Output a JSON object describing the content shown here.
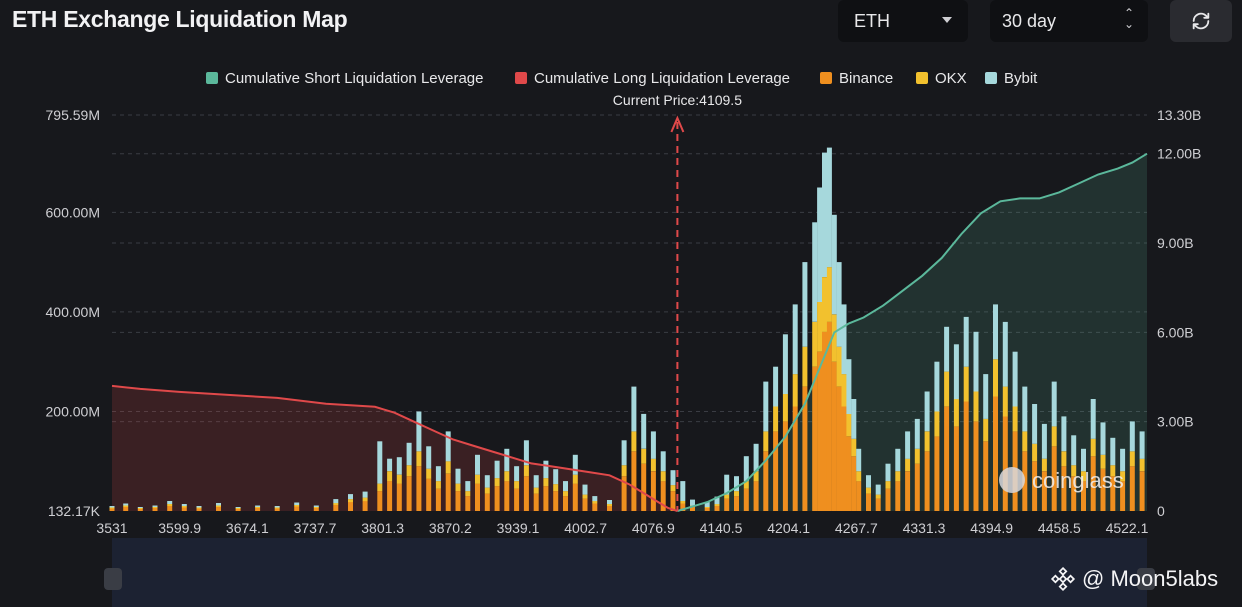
{
  "header": {
    "title": "ETH Exchange Liquidation Map",
    "symbol_select": "ETH",
    "range_select": "30 day"
  },
  "watermark": {
    "text": "@ Moon5labs",
    "chart_brand": "coinglass"
  },
  "colors": {
    "short_cum": "#5bb89b",
    "long_cum": "#e0494a",
    "binance": "#ef8f1f",
    "okx": "#f2c12e",
    "bybit": "#a6d8dc"
  },
  "chart_data": {
    "type": "bar",
    "current_price_label": "Current Price:4109.5",
    "current_price": 4109.5,
    "legend": [
      "Cumulative Short Liquidation Leverage",
      "Cumulative Long Liquidation Leverage",
      "Binance",
      "OKX",
      "Bybit"
    ],
    "legend_position": "top-center",
    "x_ticks": [
      "3531",
      "3599.9",
      "3674.1",
      "3737.7",
      "3801.3",
      "3870.2",
      "3939.1",
      "4002.7",
      "4076.9",
      "4140.5",
      "4204.1",
      "4267.7",
      "4331.3",
      "4394.9",
      "4458.5",
      "4522.1"
    ],
    "x_range": [
      3531,
      4590
    ],
    "y_left_ticks": [
      "795.59M",
      "600.00M",
      "400.00M",
      "200.00M",
      "132.17K"
    ],
    "y_left_range": [
      0,
      795.59
    ],
    "y_left_unit": "M",
    "y_right_ticks": [
      "13.30B",
      "12.00B",
      "9.00B",
      "6.00B",
      "3.00B",
      "0"
    ],
    "y_right_range": [
      0,
      13.3
    ],
    "y_right_unit": "B",
    "grid": "horizontal-dashed",
    "series": [
      {
        "name": "Binance",
        "x": [
          3531,
          3545,
          3560,
          3575,
          3590,
          3605,
          3620,
          3640,
          3660,
          3680,
          3700,
          3720,
          3740,
          3760,
          3775,
          3790,
          3805,
          3815,
          3825,
          3835,
          3845,
          3855,
          3865,
          3875,
          3885,
          3895,
          3905,
          3915,
          3925,
          3935,
          3945,
          3955,
          3965,
          3975,
          3985,
          3995,
          4005,
          4015,
          4025,
          4040,
          4055,
          4065,
          4075,
          4085,
          4095,
          4105,
          4115,
          4125,
          4140,
          4150,
          4160,
          4170,
          4180,
          4190,
          4200,
          4210,
          4220,
          4230,
          4240,
          4250,
          4255,
          4260,
          4265,
          4270,
          4275,
          4280,
          4285,
          4290,
          4295,
          4305,
          4315,
          4325,
          4335,
          4345,
          4355,
          4365,
          4375,
          4385,
          4395,
          4405,
          4415,
          4425,
          4435,
          4445,
          4455,
          4465,
          4475,
          4485,
          4495,
          4505,
          4515,
          4525,
          4535,
          4545,
          4555,
          4565,
          4575,
          4585
        ],
        "values": [
          5,
          8,
          4,
          6,
          10,
          7,
          5,
          8,
          4,
          6,
          5,
          9,
          6,
          12,
          18,
          20,
          40,
          60,
          55,
          70,
          90,
          65,
          45,
          75,
          40,
          30,
          55,
          35,
          50,
          60,
          45,
          70,
          35,
          50,
          40,
          30,
          55,
          25,
          15,
          10,
          70,
          120,
          95,
          80,
          60,
          40,
          15,
          8,
          6,
          10,
          25,
          30,
          45,
          60,
          120,
          160,
          180,
          210,
          250,
          290,
          320,
          360,
          380,
          300,
          250,
          210,
          150,
          110,
          60,
          35,
          25,
          45,
          60,
          80,
          95,
          120,
          150,
          210,
          170,
          220,
          180,
          140,
          230,
          190,
          160,
          120,
          100,
          80,
          130,
          90,
          70,
          60,
          110,
          85,
          70,
          60,
          90,
          80
        ]
      },
      {
        "name": "OKX",
        "x": [
          3531,
          3545,
          3560,
          3575,
          3590,
          3605,
          3620,
          3640,
          3660,
          3680,
          3700,
          3720,
          3740,
          3760,
          3775,
          3790,
          3805,
          3815,
          3825,
          3835,
          3845,
          3855,
          3865,
          3875,
          3885,
          3895,
          3905,
          3915,
          3925,
          3935,
          3945,
          3955,
          3965,
          3975,
          3985,
          3995,
          4005,
          4015,
          4025,
          4040,
          4055,
          4065,
          4075,
          4085,
          4095,
          4105,
          4115,
          4125,
          4140,
          4150,
          4160,
          4170,
          4180,
          4190,
          4200,
          4210,
          4220,
          4230,
          4240,
          4250,
          4255,
          4260,
          4265,
          4270,
          4275,
          4280,
          4285,
          4290,
          4295,
          4305,
          4315,
          4325,
          4335,
          4345,
          4355,
          4365,
          4375,
          4385,
          4395,
          4405,
          4415,
          4425,
          4435,
          4445,
          4455,
          4465,
          4475,
          4485,
          4495,
          4505,
          4515,
          4525,
          4535,
          4545,
          4555,
          4565,
          4575,
          4585
        ],
        "values": [
          2,
          3,
          2,
          2,
          4,
          3,
          2,
          3,
          2,
          2,
          2,
          3,
          2,
          4,
          6,
          7,
          15,
          20,
          18,
          22,
          30,
          20,
          15,
          25,
          15,
          10,
          18,
          12,
          16,
          20,
          15,
          22,
          12,
          16,
          14,
          10,
          18,
          8,
          5,
          4,
          22,
          40,
          30,
          25,
          20,
          12,
          5,
          3,
          2,
          4,
          8,
          10,
          15,
          20,
          40,
          50,
          55,
          65,
          80,
          90,
          100,
          110,
          110,
          95,
          80,
          65,
          45,
          35,
          20,
          12,
          8,
          15,
          20,
          25,
          30,
          40,
          50,
          70,
          55,
          70,
          60,
          45,
          75,
          60,
          50,
          40,
          35,
          25,
          40,
          30,
          22,
          20,
          35,
          28,
          22,
          20,
          30,
          25
        ]
      },
      {
        "name": "Bybit",
        "x": [
          3531,
          3545,
          3560,
          3575,
          3590,
          3605,
          3620,
          3640,
          3660,
          3680,
          3700,
          3720,
          3740,
          3760,
          3775,
          3790,
          3805,
          3815,
          3825,
          3835,
          3845,
          3855,
          3865,
          3875,
          3885,
          3895,
          3905,
          3915,
          3925,
          3935,
          3945,
          3955,
          3965,
          3975,
          3985,
          3995,
          4005,
          4015,
          4025,
          4040,
          4055,
          4065,
          4075,
          4085,
          4095,
          4105,
          4115,
          4125,
          4140,
          4150,
          4160,
          4170,
          4180,
          4190,
          4200,
          4210,
          4220,
          4230,
          4240,
          4250,
          4255,
          4260,
          4265,
          4270,
          4275,
          4280,
          4285,
          4290,
          4295,
          4305,
          4315,
          4325,
          4335,
          4345,
          4355,
          4365,
          4375,
          4385,
          4395,
          4405,
          4415,
          4425,
          4435,
          4445,
          4455,
          4465,
          4475,
          4485,
          4495,
          4505,
          4515,
          4525,
          4535,
          4545,
          4555,
          4565,
          4575,
          4585
        ],
        "values": [
          3,
          4,
          2,
          3,
          6,
          4,
          3,
          5,
          2,
          3,
          3,
          5,
          3,
          8,
          10,
          12,
          85,
          25,
          35,
          45,
          80,
          45,
          30,
          60,
          30,
          20,
          40,
          25,
          35,
          45,
          30,
          50,
          25,
          35,
          30,
          20,
          40,
          20,
          10,
          8,
          50,
          90,
          70,
          55,
          40,
          30,
          40,
          12,
          10,
          15,
          40,
          30,
          50,
          55,
          100,
          80,
          120,
          140,
          170,
          200,
          230,
          250,
          240,
          200,
          170,
          140,
          110,
          80,
          45,
          25,
          20,
          35,
          45,
          55,
          60,
          80,
          100,
          90,
          110,
          100,
          120,
          90,
          110,
          130,
          110,
          90,
          80,
          70,
          90,
          70,
          60,
          45,
          80,
          65,
          55,
          45,
          60,
          55
        ]
      },
      {
        "name": "Cumulative Short Liquidation Leverage",
        "axis": "right",
        "x": [
          4109.5,
          4140,
          4160,
          4180,
          4200,
          4220,
          4240,
          4255,
          4270,
          4285,
          4300,
          4320,
          4340,
          4360,
          4380,
          4400,
          4420,
          4440,
          4460,
          4480,
          4500,
          4520,
          4540,
          4560,
          4575,
          4590
        ],
        "values": [
          0,
          0.3,
          0.6,
          1.0,
          1.7,
          2.5,
          3.6,
          4.8,
          6.0,
          6.3,
          6.5,
          6.9,
          7.4,
          7.9,
          8.5,
          9.3,
          10.0,
          10.4,
          10.5,
          10.5,
          10.7,
          11.0,
          11.3,
          11.5,
          11.7,
          12.0
        ]
      },
      {
        "name": "Cumulative Long Liquidation Leverage",
        "axis": "right",
        "x": [
          3531,
          3560,
          3600,
          3650,
          3700,
          3750,
          3800,
          3820,
          3840,
          3860,
          3880,
          3900,
          3920,
          3940,
          3960,
          3980,
          4000,
          4020,
          4040,
          4060,
          4075,
          4090,
          4100,
          4109.5
        ],
        "values": [
          4.2,
          4.1,
          4.0,
          3.9,
          3.8,
          3.6,
          3.5,
          3.3,
          3.0,
          2.7,
          2.4,
          2.2,
          2.0,
          1.8,
          1.6,
          1.5,
          1.4,
          1.3,
          1.2,
          0.9,
          0.6,
          0.3,
          0.1,
          0
        ]
      }
    ]
  }
}
